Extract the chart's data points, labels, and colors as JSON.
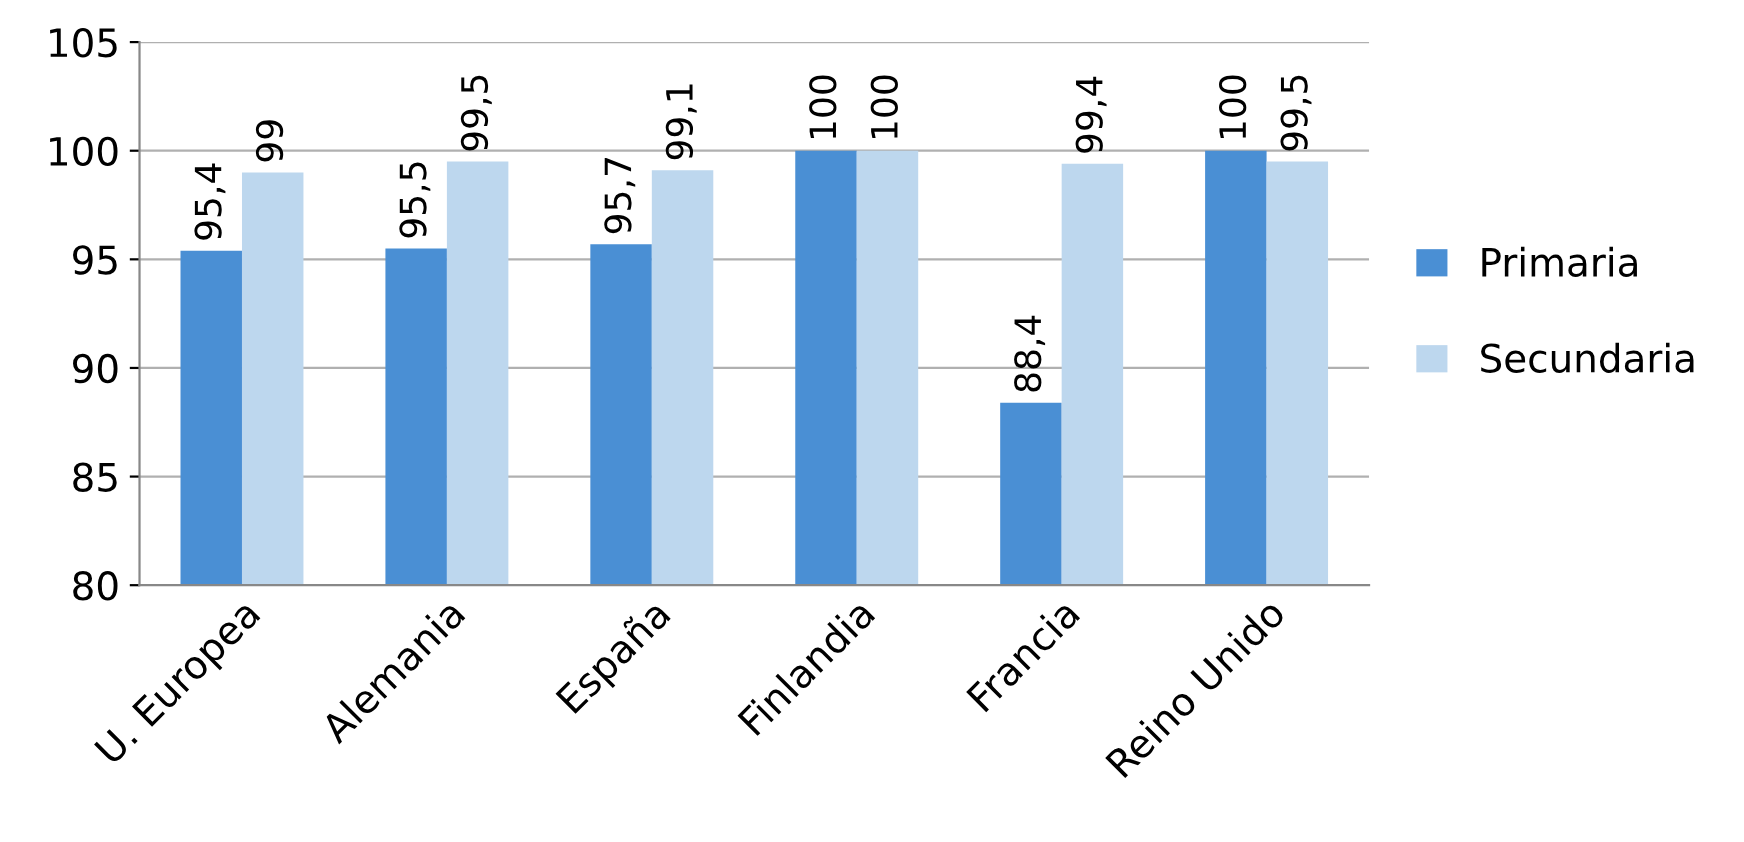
{
  "chart_data": {
    "type": "bar",
    "categories": [
      "U. Europea",
      "Alemania",
      "España",
      "Finlandia",
      "Francia",
      "Reino Unido"
    ],
    "series": [
      {
        "name": "Primaria",
        "color": "#4a8fd4",
        "values": [
          95.4,
          95.5,
          95.7,
          100,
          88.4,
          100
        ],
        "value_labels": [
          "95,4",
          "95,5",
          "95,7",
          "100",
          "88,4",
          "100"
        ]
      },
      {
        "name": "Secundaria",
        "color": "#bdd7ee",
        "values": [
          99,
          99.5,
          99.1,
          100,
          99.4,
          99.5
        ],
        "value_labels": [
          "99",
          "99,5",
          "99,1",
          "100",
          "99,4",
          "99,5"
        ]
      }
    ],
    "ylim": [
      80,
      105
    ],
    "yticks": [
      80,
      85,
      90,
      95,
      100,
      105
    ],
    "grid": "y",
    "legend": "right"
  }
}
